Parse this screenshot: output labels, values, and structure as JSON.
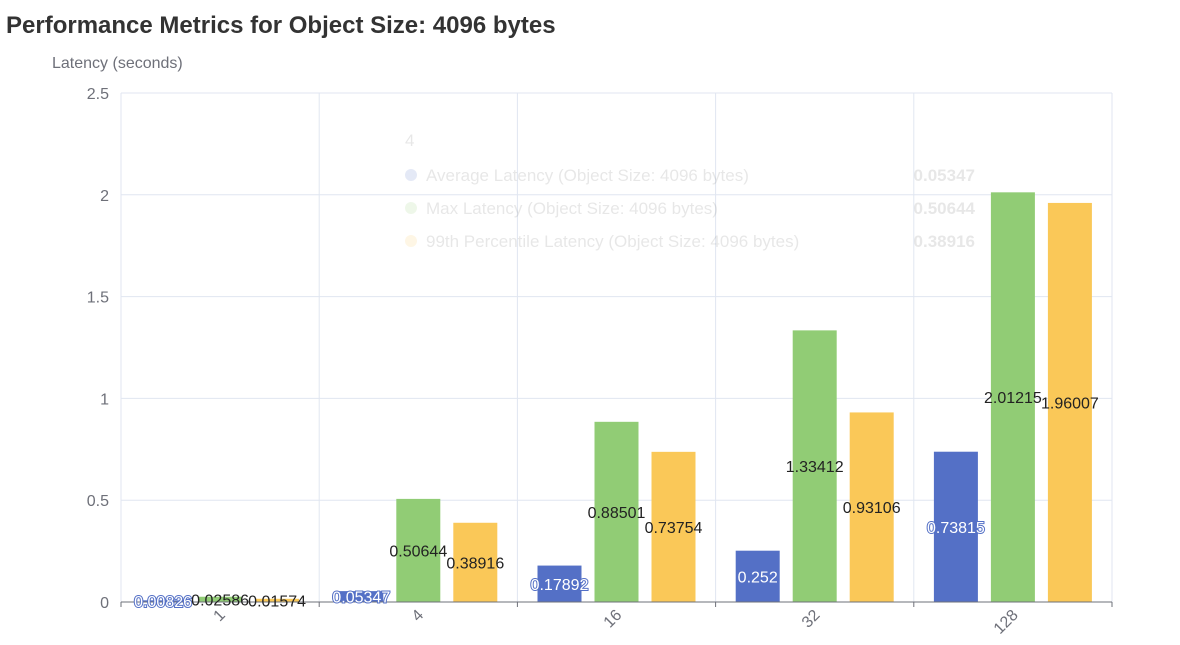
{
  "chart_data": {
    "type": "bar",
    "title": "Performance Metrics for Object Size: 4096 bytes",
    "ylabel": "Latency (seconds)",
    "xlabel": "",
    "categories": [
      "1",
      "4",
      "16",
      "32",
      "128"
    ],
    "ylim": [
      0,
      2.5
    ],
    "yticks": [
      "0",
      "0.5",
      "1",
      "1.5",
      "2",
      "2.5"
    ],
    "grid": true,
    "series": [
      {
        "name": "Average Latency (Object Size: 4096 bytes)",
        "color": "#5470c6",
        "values": [
          0.00826,
          0.05347,
          0.17892,
          0.252,
          0.73815
        ],
        "labels": [
          "0.00826",
          "0.05347",
          "0.17892",
          "0.252",
          "0.73815"
        ]
      },
      {
        "name": "Max Latency (Object Size: 4096 bytes)",
        "color": "#91cc75",
        "values": [
          0.02586,
          0.50644,
          0.88501,
          1.33412,
          2.01215
        ],
        "labels": [
          "0.02586",
          "0.50644",
          "0.88501",
          "1.33412",
          "2.01215"
        ]
      },
      {
        "name": "99th Percentile Latency (Object Size: 4096 bytes)",
        "color": "#fac858",
        "values": [
          0.01574,
          0.38916,
          0.73754,
          0.93106,
          1.96007
        ],
        "labels": [
          "0.01574",
          "0.38916",
          "0.73754",
          "0.93106",
          "1.96007"
        ]
      }
    ],
    "tooltip": {
      "category": "4",
      "rows": [
        {
          "name": "Average Latency (Object Size: 4096 bytes)",
          "value": "0.05347",
          "color": "#5470c6"
        },
        {
          "name": "Max Latency (Object Size: 4096 bytes)",
          "value": "0.50644",
          "color": "#91cc75"
        },
        {
          "name": "99th Percentile Latency (Object Size: 4096 bytes)",
          "value": "0.38916",
          "color": "#fac858"
        }
      ]
    }
  }
}
